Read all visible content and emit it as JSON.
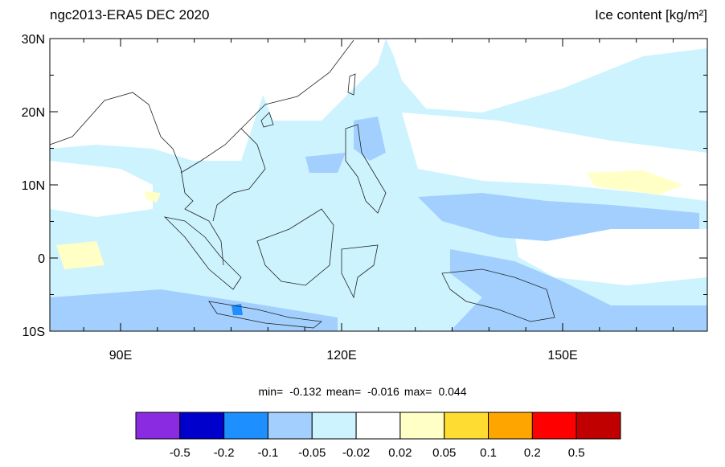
{
  "header": {
    "title_left": "ngc2013-ERA5 DEC 2020",
    "title_right": "Ice content  [kg/m²]"
  },
  "map": {
    "lon_labels": [
      "90E",
      "120E",
      "150E"
    ],
    "lat_labels": [
      "30N",
      "20N",
      "10N",
      "0",
      "10S"
    ]
  },
  "stats": {
    "min_label": "min=",
    "min": "-0.132",
    "mean_label": "mean=",
    "mean": "-0.016",
    "max_label": "max=",
    "max": "0.044"
  },
  "colorbar": {
    "colors": [
      "#8a2be2",
      "#0000cd",
      "#1e8fff",
      "#a2cffe",
      "#cdf3ff",
      "#ffffff",
      "#ffffc6",
      "#ffdc31",
      "#ffa500",
      "#ff0000",
      "#c00000"
    ],
    "labels": [
      "-0.5",
      "-0.2",
      "-0.1",
      "-0.05",
      "-0.02",
      "0.02",
      "0.05",
      "0.1",
      "0.2",
      "0.5"
    ]
  }
}
